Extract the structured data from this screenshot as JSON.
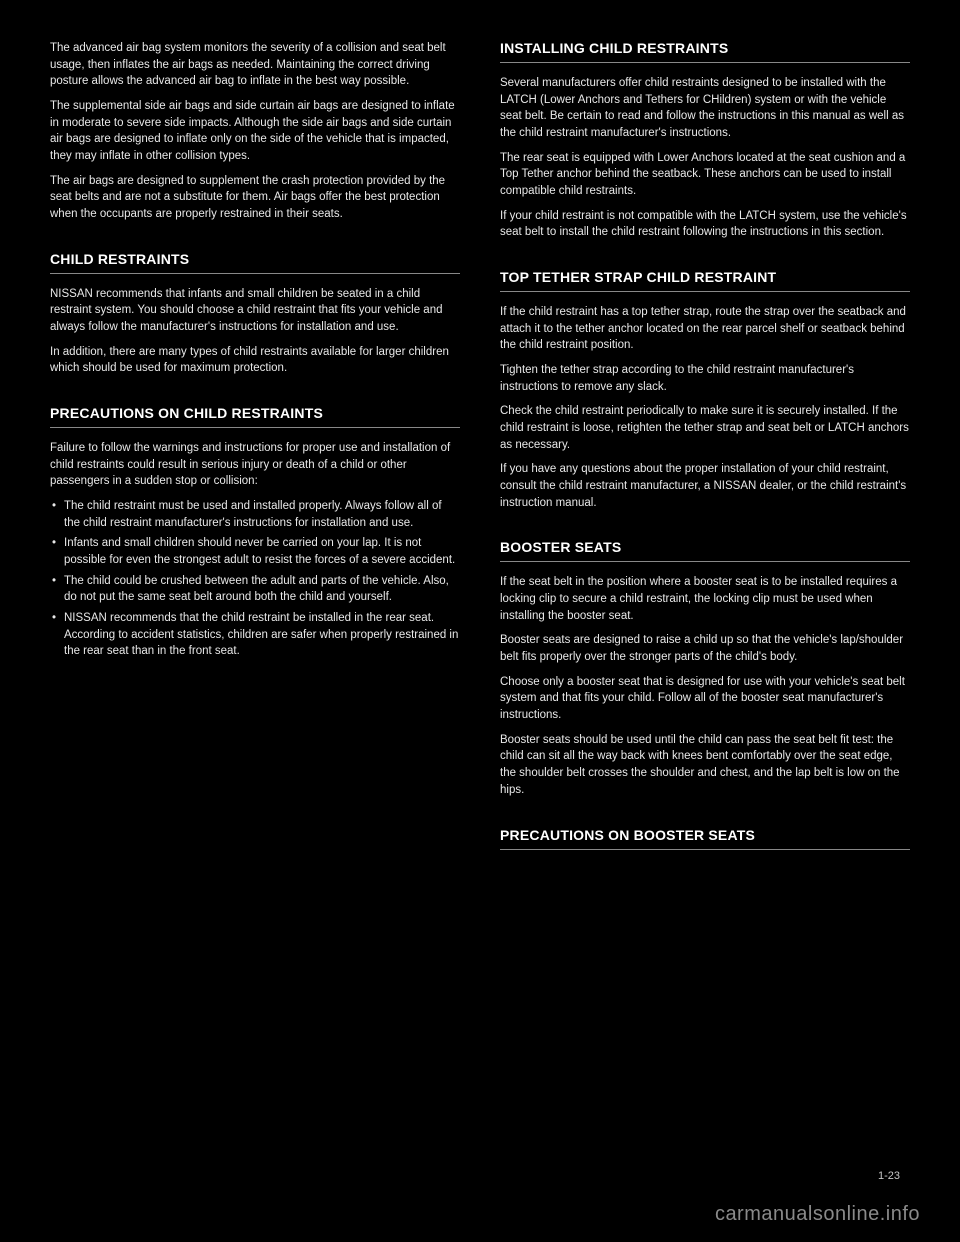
{
  "left": {
    "para1": "The advanced air bag system monitors the severity of a collision and seat belt usage, then inflates the air bags as needed. Maintaining the correct driving posture allows the advanced air bag to inflate in the best way possible.",
    "para2": "The supplemental side air bags and side curtain air bags are designed to inflate in moderate to severe side impacts. Although the side air bags and side curtain air bags are designed to inflate only on the side of the vehicle that is impacted, they may inflate in other collision types.",
    "para3": "The air bags are designed to supplement the crash protection provided by the seat belts and are not a substitute for them. Air bags offer the best protection when the occupants are properly restrained in their seats.",
    "sec1": {
      "title": "CHILD RESTRAINTS",
      "p1": "NISSAN recommends that infants and small children be seated in a child restraint system. You should choose a child restraint that fits your vehicle and always follow the manufacturer's instructions for installation and use.",
      "p2": "In addition, there are many types of child restraints available for larger children which should be used for maximum protection."
    },
    "sec2": {
      "title": "PRECAUTIONS ON CHILD RESTRAINTS",
      "p1": "Failure to follow the warnings and instructions for proper use and installation of child restraints could result in serious injury or death of a child or other passengers in a sudden stop or collision:",
      "b1": "The child restraint must be used and installed properly. Always follow all of the child restraint manufacturer's instructions for installation and use.",
      "b2": "Infants and small children should never be carried on your lap. It is not possible for even the strongest adult to resist the forces of a severe accident.",
      "b3": "The child could be crushed between the adult and parts of the vehicle. Also, do not put the same seat belt around both the child and yourself.",
      "b4": "NISSAN recommends that the child restraint be installed in the rear seat. According to accident statistics, children are safer when properly restrained in the rear seat than in the front seat."
    }
  },
  "right": {
    "sec1": {
      "title": "INSTALLING CHILD RESTRAINTS",
      "p1": "Several manufacturers offer child restraints designed to be installed with the LATCH (Lower Anchors and Tethers for CHildren) system or with the vehicle seat belt. Be certain to read and follow the instructions in this manual as well as the child restraint manufacturer's instructions.",
      "p2": "The rear seat is equipped with Lower Anchors located at the seat cushion and a Top Tether anchor behind the seatback. These anchors can be used to install compatible child restraints.",
      "p3": "If your child restraint is not compatible with the LATCH system, use the vehicle's seat belt to install the child restraint following the instructions in this section."
    },
    "sec2": {
      "title": "TOP TETHER STRAP CHILD RESTRAINT",
      "p1": "If the child restraint has a top tether strap, route the strap over the seatback and attach it to the tether anchor located on the rear parcel shelf or seatback behind the child restraint position.",
      "p2": "Tighten the tether strap according to the child restraint manufacturer's instructions to remove any slack.",
      "p3": "Check the child restraint periodically to make sure it is securely installed. If the child restraint is loose, retighten the tether strap and seat belt or LATCH anchors as necessary.",
      "p4": "If you have any questions about the proper installation of your child restraint, consult the child restraint manufacturer, a NISSAN dealer, or the child restraint's instruction manual."
    },
    "sec3": {
      "title": "BOOSTER SEATS",
      "p1": "If the seat belt in the position where a booster seat is to be installed requires a locking clip to secure a child restraint, the locking clip must be used when installing the booster seat.",
      "p2": "Booster seats are designed to raise a child up so that the vehicle's lap/shoulder belt fits properly over the stronger parts of the child's body.",
      "p3": "Choose only a booster seat that is designed for use with your vehicle's seat belt system and that fits your child. Follow all of the booster seat manufacturer's instructions.",
      "p4": "Booster seats should be used until the child can pass the seat belt fit test: the child can sit all the way back with knees bent comfortably over the seat edge, the shoulder belt crosses the shoulder and chest, and the lap belt is low on the hips."
    },
    "sec4": {
      "title": "PRECAUTIONS ON BOOSTER SEATS"
    }
  },
  "footer": "carmanualsonline.info",
  "page_number": "1-23"
}
